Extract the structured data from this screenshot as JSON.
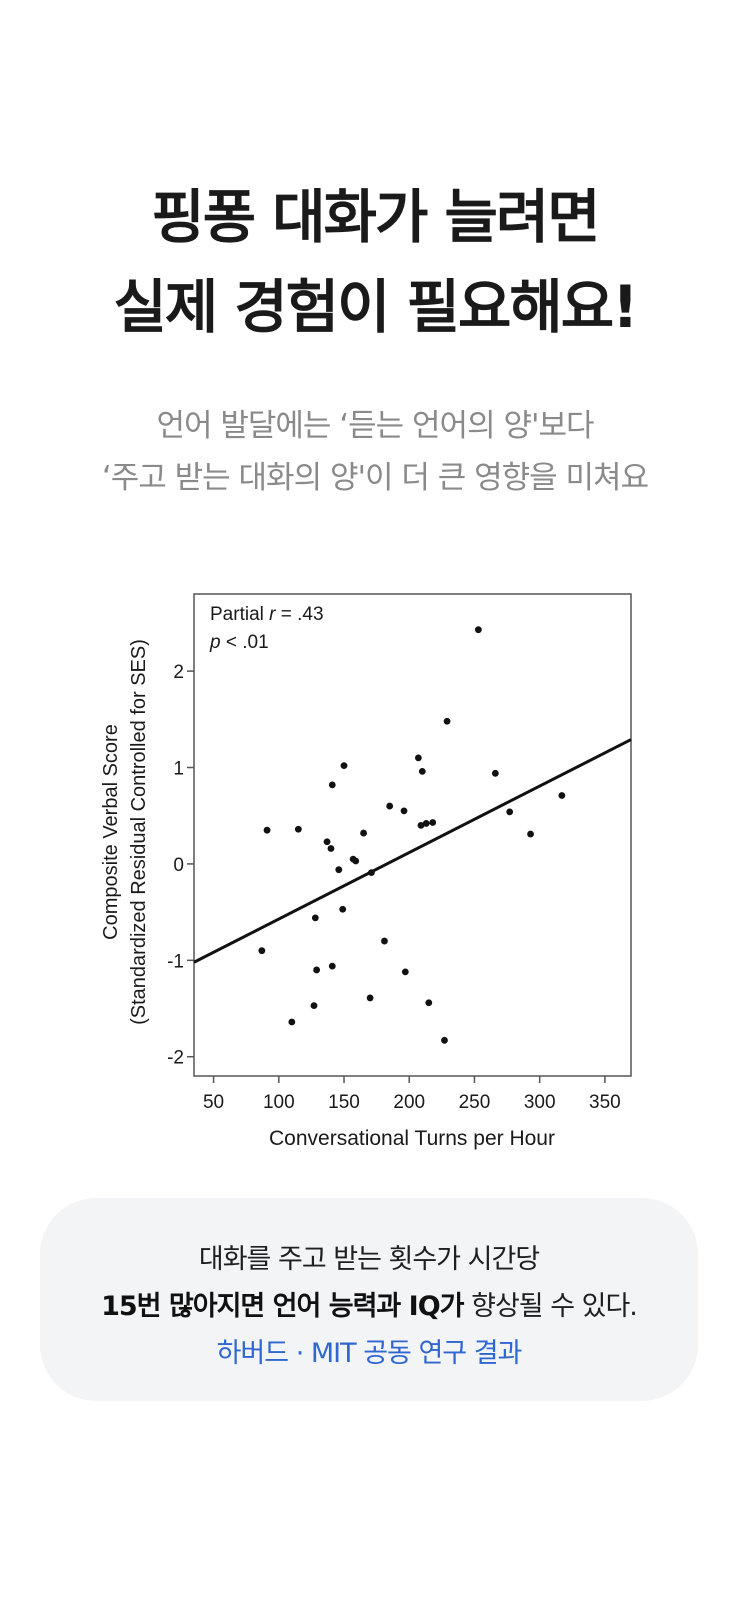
{
  "header": {
    "title_line1": "핑퐁 대화가 늘려면",
    "title_line2": "실제 경험이 필요해요!",
    "subtitle_line1": "언어 발달에는 ‘듣는 언어의 양'보다",
    "subtitle_line2": "‘주고 받는 대화의 양'이 더 큰 영향을 미쳐요"
  },
  "chart_data": {
    "type": "scatter",
    "xlabel": "Conversational Turns per Hour",
    "ylabel_line1": "Composite Verbal Score",
    "ylabel_line2": "(Standardized Residual Controlled for SES)",
    "annotation_line1_prefix": "Partial ",
    "annotation_line1_r": "r",
    "annotation_line1_value": " = .43",
    "annotation_line2_p": "p",
    "annotation_line2_value": " < .01",
    "xlim": [
      35,
      370
    ],
    "ylim": [
      -2.2,
      2.8
    ],
    "x_ticks": [
      50,
      100,
      150,
      200,
      250,
      300,
      350
    ],
    "y_ticks": [
      -2,
      -1,
      0,
      1,
      2
    ],
    "x_tick_labels": [
      "50",
      "100",
      "150",
      "200",
      "250",
      "300",
      "350"
    ],
    "y_tick_labels": [
      "-2",
      "-1",
      "0",
      "1",
      "2"
    ],
    "grid": false,
    "trend_line": {
      "x": [
        35,
        370
      ],
      "y": [
        -1.02,
        1.29
      ]
    },
    "points": [
      {
        "x": 87,
        "y": -0.9
      },
      {
        "x": 91,
        "y": 0.35
      },
      {
        "x": 110,
        "y": -1.64
      },
      {
        "x": 115,
        "y": 0.36
      },
      {
        "x": 127,
        "y": -1.47
      },
      {
        "x": 128,
        "y": -0.56
      },
      {
        "x": 129,
        "y": -1.1
      },
      {
        "x": 137,
        "y": 0.23
      },
      {
        "x": 140,
        "y": 0.16
      },
      {
        "x": 141,
        "y": -1.06
      },
      {
        "x": 141,
        "y": 0.82
      },
      {
        "x": 146,
        "y": -0.06
      },
      {
        "x": 149,
        "y": -0.47
      },
      {
        "x": 150,
        "y": 1.02
      },
      {
        "x": 157,
        "y": 0.05
      },
      {
        "x": 159,
        "y": 0.03
      },
      {
        "x": 165,
        "y": 0.32
      },
      {
        "x": 170,
        "y": -1.39
      },
      {
        "x": 171,
        "y": -0.09
      },
      {
        "x": 181,
        "y": -0.8
      },
      {
        "x": 185,
        "y": 0.6
      },
      {
        "x": 196,
        "y": 0.55
      },
      {
        "x": 197,
        "y": -1.12
      },
      {
        "x": 207,
        "y": 1.1
      },
      {
        "x": 209,
        "y": 0.4
      },
      {
        "x": 210,
        "y": 0.96
      },
      {
        "x": 213,
        "y": 0.42
      },
      {
        "x": 215,
        "y": -1.44
      },
      {
        "x": 218,
        "y": 0.43
      },
      {
        "x": 227,
        "y": -1.83
      },
      {
        "x": 229,
        "y": 1.48
      },
      {
        "x": 253,
        "y": 2.43
      },
      {
        "x": 266,
        "y": 0.94
      },
      {
        "x": 277,
        "y": 0.54
      },
      {
        "x": 293,
        "y": 0.31
      },
      {
        "x": 317,
        "y": 0.71
      }
    ]
  },
  "callout": {
    "line1": "대화를 주고 받는 횟수가 시간당",
    "line2_bold": "15번 많아지면 언어 능력과 IQ가",
    "line2_rest": " 향상될 수 있다.",
    "source": "하버드 · MIT 공동 연구 결과"
  }
}
